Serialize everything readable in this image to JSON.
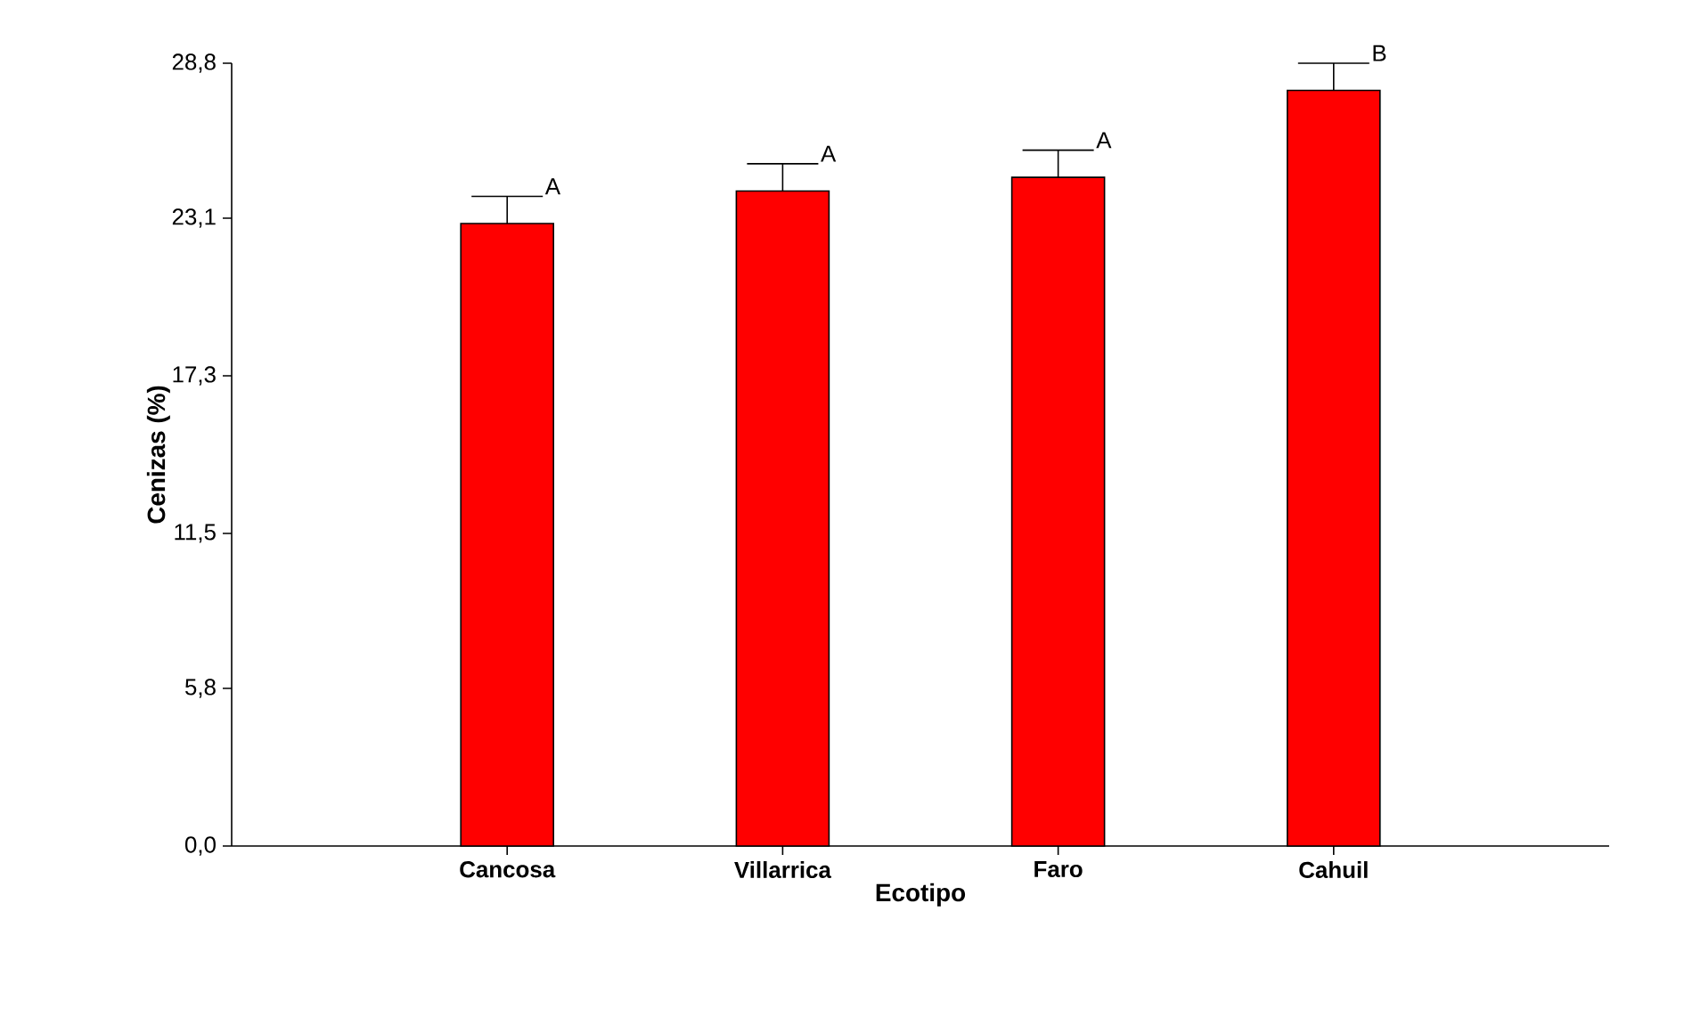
{
  "chart_data": {
    "type": "bar",
    "xlabel": "Ecotipo",
    "ylabel": "Cenizas (%)",
    "categories": [
      "Cancosa",
      "Villarrica",
      "Faro",
      "Cahuil"
    ],
    "values": [
      22.9,
      24.1,
      24.6,
      27.8
    ],
    "errors": [
      1.0,
      1.0,
      1.0,
      1.0
    ],
    "color": "#ff0000",
    "ylim": [
      0,
      28.8
    ],
    "yticks": [
      {
        "value": 0,
        "label": "0,0"
      },
      {
        "value": 5.8,
        "label": "5,8"
      },
      {
        "value": 11.5,
        "label": "11,5"
      },
      {
        "value": 17.3,
        "label": "17,3"
      },
      {
        "value": 23.1,
        "label": "23,1"
      },
      {
        "value": 28.8,
        "label": "28,8"
      }
    ],
    "annotations": [
      {
        "text": "A",
        "x": "Cancosa",
        "y": 23.9
      },
      {
        "text": "A",
        "x": "Villarrica",
        "y": 25.1
      },
      {
        "text": "A",
        "x": "Faro",
        "y": 25.6
      },
      {
        "text": "B",
        "x": "Cahuil",
        "y": 28.8
      }
    ],
    "grid": false
  }
}
